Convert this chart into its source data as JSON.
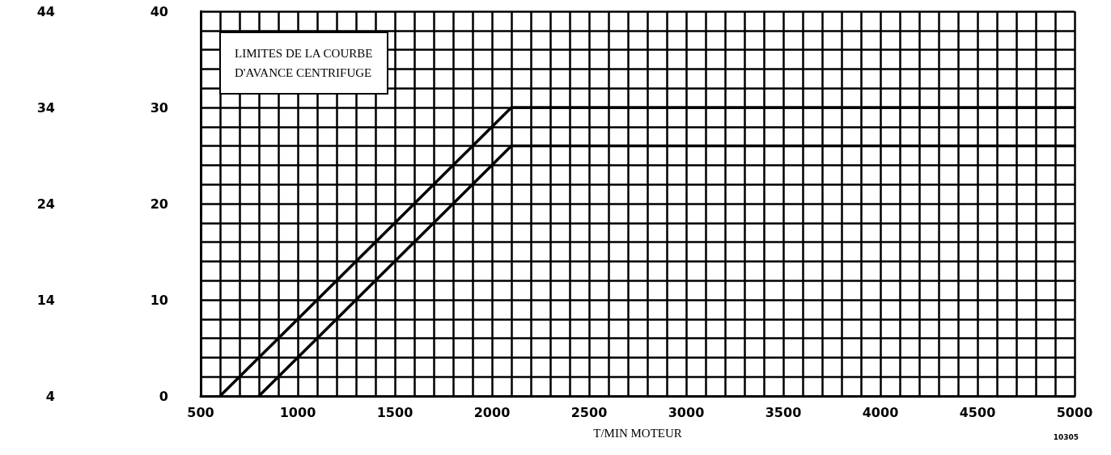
{
  "chart_data": {
    "type": "line",
    "title": "LIMITES DE LA COURBE\nD'AVANCE CENTRIFUGE",
    "xlabel": "T/MIN MOTEUR",
    "annotations": [
      "10305"
    ],
    "series": [
      {
        "color": "#000000",
        "x": [
          600,
          2100,
          5000
        ],
        "values": [
          0,
          30,
          30
        ]
      },
      {
        "color": "#000000",
        "x": [
          800,
          2100,
          5000
        ],
        "values": [
          0,
          26,
          26
        ]
      }
    ],
    "xlim": [
      500,
      5000
    ],
    "xticks": [
      500,
      {
        "value": 600,
        "label": null
      },
      {
        "value": 700,
        "label": null
      },
      {
        "value": 800,
        "label": null
      },
      {
        "value": 900,
        "label": null
      },
      1000,
      {
        "value": 1100,
        "label": null
      },
      {
        "value": 1200,
        "label": null
      },
      {
        "value": 1300,
        "label": null
      },
      {
        "value": 1400,
        "label": null
      },
      1500,
      {
        "value": 1600,
        "label": null
      },
      {
        "value": 1700,
        "label": null
      },
      {
        "value": 1800,
        "label": null
      },
      {
        "value": 1900,
        "label": null
      },
      2000,
      {
        "value": 2100,
        "label": null
      },
      {
        "value": 2200,
        "label": null
      },
      {
        "value": 2300,
        "label": null
      },
      {
        "value": 2400,
        "label": null
      },
      2500,
      {
        "value": 2600,
        "label": null
      },
      {
        "value": 2700,
        "label": null
      },
      {
        "value": 2800,
        "label": null
      },
      {
        "value": 2900,
        "label": null
      },
      3000,
      {
        "value": 3100,
        "label": null
      },
      {
        "value": 3200,
        "label": null
      },
      {
        "value": 3300,
        "label": null
      },
      {
        "value": 3400,
        "label": null
      },
      3500,
      {
        "value": 3600,
        "label": null
      },
      {
        "value": 3700,
        "label": null
      },
      {
        "value": 3800,
        "label": null
      },
      {
        "value": 3900,
        "label": null
      },
      4000,
      {
        "value": 4100,
        "label": null
      },
      {
        "value": 4200,
        "label": null
      },
      {
        "value": 4300,
        "label": null
      },
      {
        "value": 4400,
        "label": null
      },
      4500,
      {
        "value": 4600,
        "label": null
      },
      {
        "value": 4700,
        "label": null
      },
      {
        "value": 4800,
        "label": null
      },
      {
        "value": 4900,
        "label": null
      },
      5000
    ],
    "ylim": [
      0,
      40
    ],
    "yticks": [
      0,
      {
        "value": 2,
        "label": null
      },
      {
        "value": 4,
        "label": null
      },
      {
        "value": 6,
        "label": null
      },
      {
        "value": 8,
        "label": null
      },
      10,
      {
        "value": 12,
        "label": null
      },
      {
        "value": 14,
        "label": null
      },
      {
        "value": 16,
        "label": null
      },
      {
        "value": 18,
        "label": null
      },
      20,
      {
        "value": 22,
        "label": null
      },
      {
        "value": 24,
        "label": null
      },
      {
        "value": 26,
        "label": null
      },
      {
        "value": 28,
        "label": null
      },
      30,
      {
        "value": 32,
        "label": null
      },
      {
        "value": 34,
        "label": null
      },
      {
        "value": 36,
        "label": null
      },
      {
        "value": 38,
        "label": null
      },
      40
    ],
    "y2lim": [
      4,
      44
    ],
    "y2ticks": [
      4,
      14,
      24,
      34,
      44
    ],
    "grid": true,
    "marker": "none",
    "line_style": "solid"
  }
}
